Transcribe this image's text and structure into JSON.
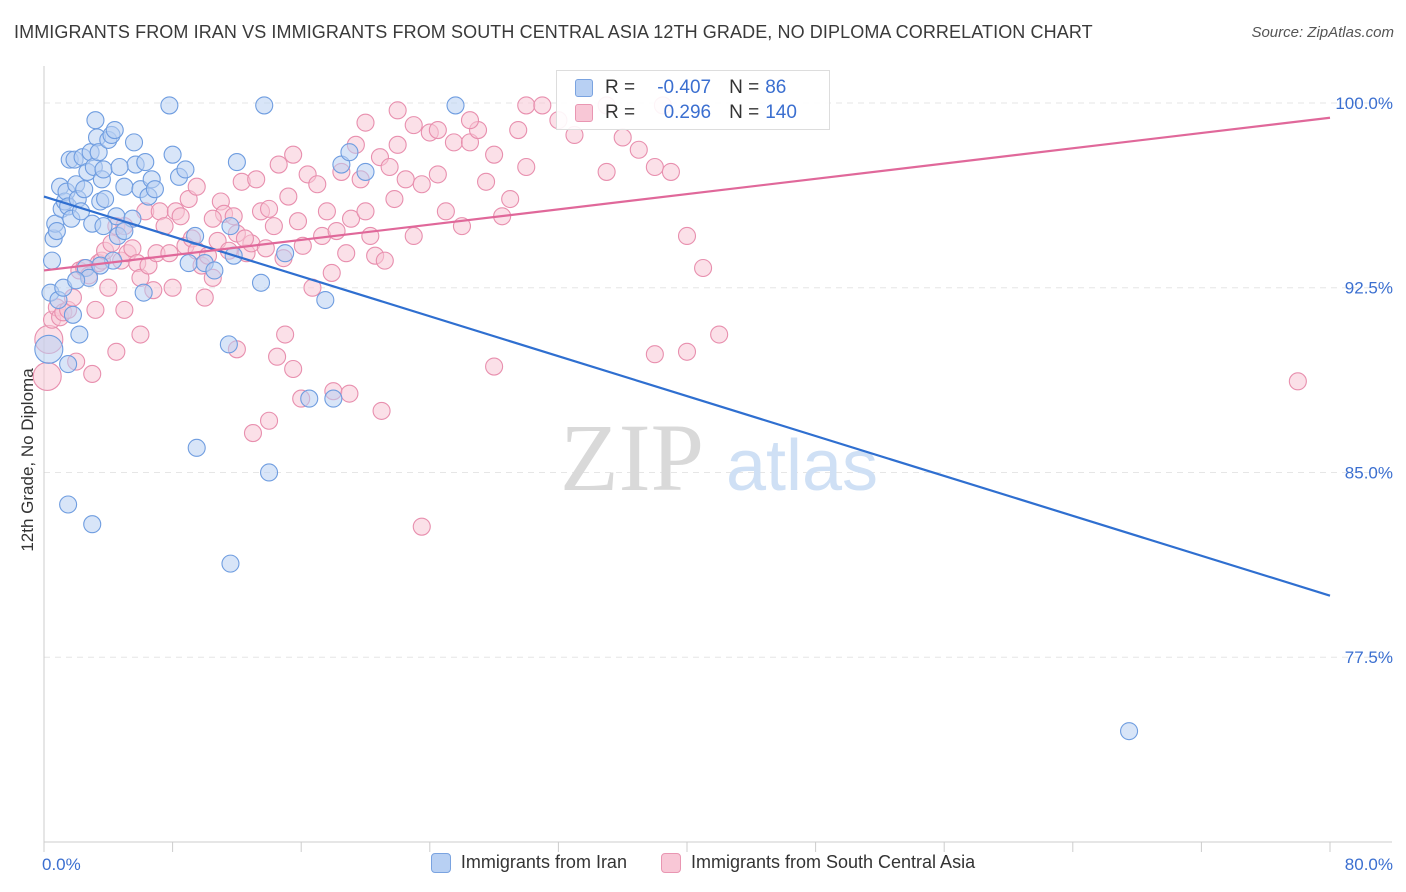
{
  "title": "IMMIGRANTS FROM IRAN VS IMMIGRANTS FROM SOUTH CENTRAL ASIA 12TH GRADE, NO DIPLOMA CORRELATION CHART",
  "source": "Source: ZipAtlas.com",
  "watermark": {
    "zip": "ZIP",
    "atlas": "atlas"
  },
  "legend": {
    "r_label": "R =",
    "n_label": "N =",
    "series": [
      {
        "name": "Immigrants from Iran",
        "r": "-0.407",
        "n": "86"
      },
      {
        "name": "Immigrants from South Central Asia",
        "r": "0.296",
        "n": "140"
      }
    ]
  },
  "colors": {
    "blue_fill": "#b8d0f3",
    "blue_stroke": "#6f9de0",
    "blue_line": "#2f6fd0",
    "pink_fill": "#f8c7d6",
    "pink_stroke": "#e88fae",
    "pink_line": "#e0689a",
    "axis_label": "#3b6fd0",
    "grid": "#e6e6e6"
  },
  "chart_data": {
    "type": "scatter",
    "title": "IMMIGRANTS FROM IRAN VS IMMIGRANTS FROM SOUTH CENTRAL ASIA 12TH GRADE, NO DIPLOMA CORRELATION CHART",
    "xlabel": "",
    "ylabel": "12th Grade, No Diploma",
    "xlim": [
      0,
      80
    ],
    "ylim": [
      70.0,
      101.5
    ],
    "x_tick_labels": [
      {
        "value": 0,
        "label": "0.0%"
      },
      {
        "value": 80,
        "label": "80.0%"
      }
    ],
    "y_tick_labels": [
      {
        "value": 100.0,
        "label": "100.0%"
      },
      {
        "value": 92.5,
        "label": "92.5%"
      },
      {
        "value": 85.0,
        "label": "85.0%"
      },
      {
        "value": 77.5,
        "label": "77.5%"
      }
    ],
    "series": [
      {
        "name": "Immigrants from Iran",
        "color": "blue",
        "trend": {
          "x": [
            0,
            80
          ],
          "y": [
            96.2,
            80.0
          ]
        },
        "points": [
          [
            0.3,
            90.0
          ],
          [
            0.4,
            92.3
          ],
          [
            0.5,
            93.6
          ],
          [
            0.6,
            94.5
          ],
          [
            0.7,
            95.1
          ],
          [
            0.8,
            94.8
          ],
          [
            0.9,
            92.0
          ],
          [
            1.0,
            96.6
          ],
          [
            1.1,
            95.7
          ],
          [
            1.2,
            92.5
          ],
          [
            1.3,
            96.0
          ],
          [
            1.4,
            96.4
          ],
          [
            1.5,
            95.8
          ],
          [
            1.6,
            97.7
          ],
          [
            1.7,
            95.3
          ],
          [
            1.8,
            91.4
          ],
          [
            1.9,
            97.7
          ],
          [
            2.0,
            96.7
          ],
          [
            2.1,
            96.1
          ],
          [
            2.2,
            90.6
          ],
          [
            2.3,
            95.6
          ],
          [
            2.4,
            97.8
          ],
          [
            2.5,
            96.5
          ],
          [
            2.6,
            93.3
          ],
          [
            2.7,
            97.2
          ],
          [
            2.8,
            92.9
          ],
          [
            2.9,
            98.0
          ],
          [
            3.0,
            95.1
          ],
          [
            3.1,
            97.4
          ],
          [
            3.2,
            99.3
          ],
          [
            3.3,
            98.6
          ],
          [
            3.4,
            98.0
          ],
          [
            3.5,
            96.0
          ],
          [
            3.6,
            96.9
          ],
          [
            3.7,
            97.3
          ],
          [
            3.8,
            96.1
          ],
          [
            4.0,
            98.5
          ],
          [
            4.2,
            98.7
          ],
          [
            4.3,
            93.6
          ],
          [
            4.4,
            98.9
          ],
          [
            4.5,
            95.4
          ],
          [
            4.6,
            94.6
          ],
          [
            5.0,
            96.6
          ],
          [
            5.5,
            95.3
          ],
          [
            5.6,
            98.4
          ],
          [
            5.7,
            97.5
          ],
          [
            6.0,
            96.5
          ],
          [
            6.2,
            92.3
          ],
          [
            6.3,
            97.6
          ],
          [
            6.5,
            96.2
          ],
          [
            6.7,
            96.9
          ],
          [
            6.9,
            96.5
          ],
          [
            8.0,
            97.9
          ],
          [
            8.4,
            97.0
          ],
          [
            8.8,
            97.3
          ],
          [
            9.0,
            93.5
          ],
          [
            9.4,
            94.6
          ],
          [
            10.0,
            93.5
          ],
          [
            10.6,
            93.2
          ],
          [
            11.5,
            90.2
          ],
          [
            12.0,
            97.6
          ],
          [
            11.8,
            93.8
          ],
          [
            13.5,
            92.7
          ],
          [
            15.0,
            93.9
          ],
          [
            17.5,
            92.0
          ],
          [
            18.5,
            97.5
          ],
          [
            19.0,
            98.0
          ],
          [
            5.0,
            94.8
          ],
          [
            7.8,
            99.9
          ],
          [
            11.6,
            95.0
          ],
          [
            13.7,
            99.9
          ],
          [
            20.0,
            97.2
          ],
          [
            25.6,
            99.9
          ],
          [
            4.7,
            97.4
          ],
          [
            3.7,
            95.0
          ],
          [
            2.0,
            92.8
          ],
          [
            1.5,
            89.4
          ],
          [
            3.5,
            93.4
          ],
          [
            9.5,
            86.0
          ],
          [
            14.0,
            85.0
          ],
          [
            16.5,
            88.0
          ],
          [
            18.0,
            88.0
          ],
          [
            1.5,
            83.7
          ],
          [
            3.0,
            82.9
          ],
          [
            11.6,
            81.3
          ],
          [
            67.5,
            74.5
          ]
        ]
      },
      {
        "name": "Immigrants from South Central Asia",
        "color": "pink",
        "trend": {
          "x": [
            0,
            80
          ],
          "y": [
            93.2,
            99.4
          ]
        },
        "points": [
          [
            0.2,
            88.9
          ],
          [
            0.3,
            90.4
          ],
          [
            0.5,
            91.2
          ],
          [
            0.8,
            91.7
          ],
          [
            1.0,
            91.3
          ],
          [
            1.2,
            91.5
          ],
          [
            1.5,
            91.6
          ],
          [
            1.8,
            92.1
          ],
          [
            2.0,
            89.5
          ],
          [
            2.2,
            93.2
          ],
          [
            2.5,
            93.3
          ],
          [
            2.8,
            93.0
          ],
          [
            3.0,
            89.0
          ],
          [
            3.2,
            91.6
          ],
          [
            3.4,
            93.5
          ],
          [
            3.6,
            93.6
          ],
          [
            3.8,
            94.0
          ],
          [
            4.0,
            92.5
          ],
          [
            4.2,
            94.3
          ],
          [
            4.5,
            95.0
          ],
          [
            4.8,
            93.6
          ],
          [
            5.0,
            95.0
          ],
          [
            5.2,
            93.9
          ],
          [
            5.5,
            94.1
          ],
          [
            5.8,
            93.5
          ],
          [
            6.0,
            92.9
          ],
          [
            6.3,
            95.6
          ],
          [
            6.5,
            93.4
          ],
          [
            6.8,
            92.4
          ],
          [
            7.0,
            93.9
          ],
          [
            7.2,
            95.6
          ],
          [
            7.5,
            95.0
          ],
          [
            7.8,
            93.9
          ],
          [
            8.0,
            92.5
          ],
          [
            8.2,
            95.6
          ],
          [
            8.5,
            95.4
          ],
          [
            8.8,
            94.2
          ],
          [
            9.0,
            96.1
          ],
          [
            9.2,
            94.5
          ],
          [
            9.5,
            94.0
          ],
          [
            9.8,
            93.4
          ],
          [
            10.0,
            92.1
          ],
          [
            10.2,
            93.8
          ],
          [
            10.5,
            92.9
          ],
          [
            10.8,
            94.4
          ],
          [
            11.0,
            96.0
          ],
          [
            11.2,
            95.5
          ],
          [
            11.5,
            94.0
          ],
          [
            11.8,
            95.4
          ],
          [
            12.0,
            94.7
          ],
          [
            12.3,
            96.8
          ],
          [
            12.6,
            93.9
          ],
          [
            12.9,
            94.3
          ],
          [
            13.2,
            96.9
          ],
          [
            13.5,
            95.6
          ],
          [
            13.8,
            94.1
          ],
          [
            14.0,
            95.7
          ],
          [
            14.3,
            95.0
          ],
          [
            14.6,
            97.5
          ],
          [
            14.9,
            93.7
          ],
          [
            15.2,
            96.2
          ],
          [
            15.5,
            97.9
          ],
          [
            15.8,
            95.2
          ],
          [
            16.1,
            94.2
          ],
          [
            16.4,
            97.1
          ],
          [
            16.7,
            92.5
          ],
          [
            17.0,
            96.7
          ],
          [
            17.3,
            94.6
          ],
          [
            17.6,
            95.6
          ],
          [
            17.9,
            93.1
          ],
          [
            18.2,
            94.8
          ],
          [
            18.5,
            97.2
          ],
          [
            18.8,
            93.9
          ],
          [
            19.1,
            95.3
          ],
          [
            19.4,
            98.3
          ],
          [
            19.7,
            96.9
          ],
          [
            20.0,
            95.6
          ],
          [
            20.3,
            94.6
          ],
          [
            20.6,
            93.8
          ],
          [
            20.9,
            97.8
          ],
          [
            21.2,
            93.6
          ],
          [
            21.5,
            97.4
          ],
          [
            21.8,
            96.1
          ],
          [
            22.0,
            98.3
          ],
          [
            22.5,
            96.9
          ],
          [
            23.0,
            94.6
          ],
          [
            23.5,
            96.7
          ],
          [
            24.0,
            98.8
          ],
          [
            24.5,
            97.1
          ],
          [
            25.0,
            95.6
          ],
          [
            25.5,
            98.4
          ],
          [
            26.0,
            95.0
          ],
          [
            26.5,
            98.4
          ],
          [
            27.0,
            98.9
          ],
          [
            27.5,
            96.8
          ],
          [
            28.0,
            97.9
          ],
          [
            28.5,
            95.4
          ],
          [
            29.0,
            96.1
          ],
          [
            29.5,
            98.9
          ],
          [
            30.0,
            97.4
          ],
          [
            32.0,
            99.3
          ],
          [
            33.0,
            98.7
          ],
          [
            35.0,
            97.2
          ],
          [
            36.0,
            98.6
          ],
          [
            37.0,
            98.1
          ],
          [
            38.0,
            97.4
          ],
          [
            39.0,
            97.2
          ],
          [
            40.0,
            94.6
          ],
          [
            38.5,
            99.9
          ],
          [
            35.0,
            99.9
          ],
          [
            30.0,
            99.9
          ],
          [
            31.0,
            99.9
          ],
          [
            26.5,
            99.3
          ],
          [
            23.0,
            99.1
          ],
          [
            22.0,
            99.7
          ],
          [
            20.0,
            99.2
          ],
          [
            24.5,
            98.9
          ],
          [
            12.5,
            94.5
          ],
          [
            10.5,
            95.3
          ],
          [
            9.5,
            96.6
          ],
          [
            4.5,
            89.9
          ],
          [
            5.0,
            91.6
          ],
          [
            6.0,
            90.6
          ],
          [
            12.0,
            90.0
          ],
          [
            15.0,
            90.6
          ],
          [
            14.5,
            89.7
          ],
          [
            15.5,
            89.2
          ],
          [
            16.0,
            88.0
          ],
          [
            18.0,
            88.3
          ],
          [
            19.0,
            88.2
          ],
          [
            21.0,
            87.5
          ],
          [
            23.5,
            82.8
          ],
          [
            28.0,
            89.3
          ],
          [
            38.0,
            89.8
          ],
          [
            40.0,
            89.9
          ],
          [
            42.0,
            90.6
          ],
          [
            78.0,
            88.7
          ],
          [
            14.0,
            87.1
          ],
          [
            41.0,
            93.3
          ],
          [
            13.0,
            86.6
          ]
        ]
      }
    ]
  }
}
